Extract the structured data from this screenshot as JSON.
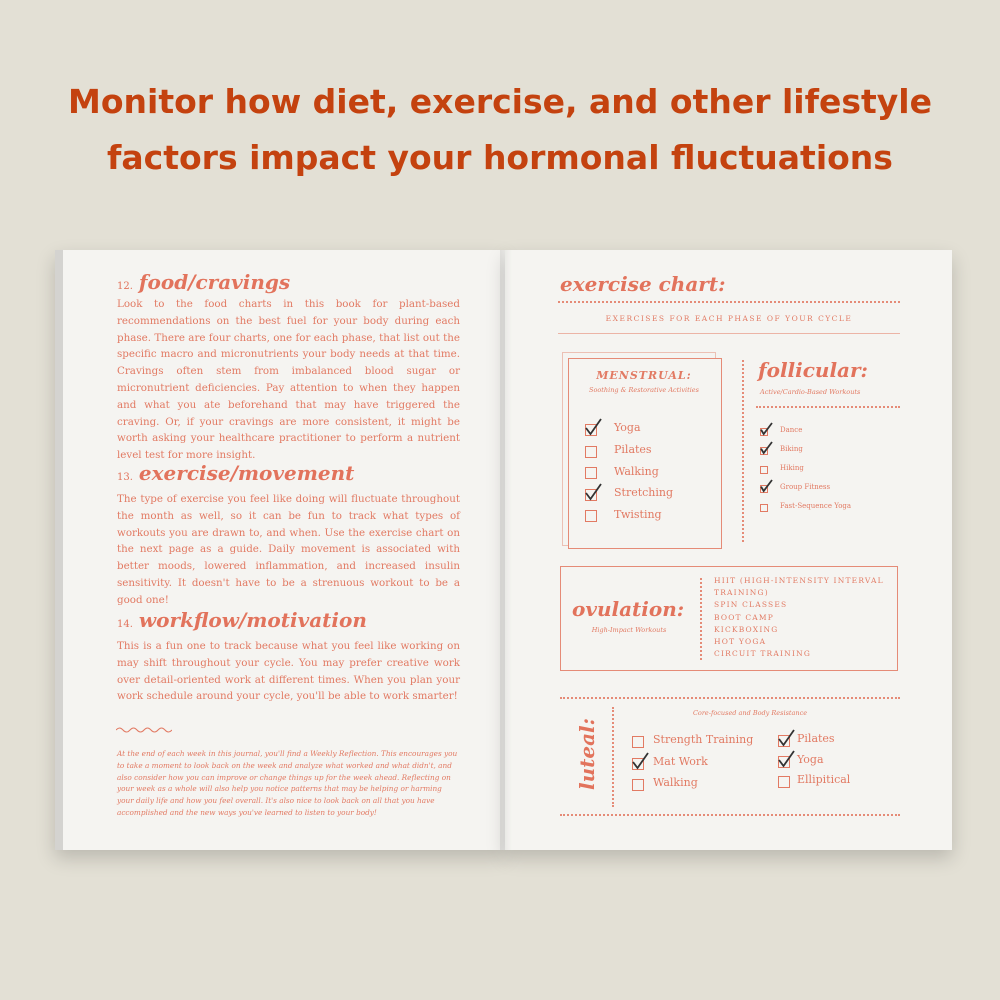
{
  "headline": {
    "lines": [
      "Monitor how diet, exercise, and other lifestyle",
      "factors impact your hormonal fluctuations"
    ]
  },
  "left_page": {
    "sections": [
      {
        "number": "12.",
        "title": "food/cravings",
        "body": "Look to the food charts in this book for plant-based recommendations on the best fuel for your body during each phase. There are four charts, one for each phase, that list out the specific macro and micronutrients your body needs at that time. Cravings often stem from imbalanced blood sugar or micronutrient deficiencies. Pay attention to when they happen and what you ate beforehand that may have triggered the craving. Or, if your cravings are more consistent, it might be worth asking your healthcare practitioner to perform a nutrient level test for more insight."
      },
      {
        "number": "13.",
        "title": "exercise/movement",
        "body": "The type of exercise you feel like doing will fluctuate throughout the month as well, so it can be fun to track what types of workouts you are drawn to, and when. Use the exercise chart on the next page as a guide. Daily movement is associated with better moods, lowered inflammation, and increased insulin sensitivity. It doesn't have to be a strenuous workout to be a good one!"
      },
      {
        "number": "14.",
        "title": "workflow/motivation",
        "body": "This is a fun one to track because what you feel like working on may shift throughout your cycle. You may prefer creative work over detail-oriented work at different times. When you plan your work schedule around your cycle, you'll be able to work smarter!"
      }
    ],
    "note": "At the end of each week in this journal, you'll find a Weekly Reflection. This encourages you to take a moment to look back on the week and analyze what worked and what didn't, and also consider how you can improve or change things up for the week ahead. Reflecting on your week as a whole will also help you notice patterns that may be helping or harming your daily life and how you feel overall. It's also nice to look back on all that you have accomplished and the new ways you've learned to listen to your body!"
  },
  "right_page": {
    "title": "exercise chart:",
    "subtitle": "EXERCISES FOR EACH PHASE OF YOUR CYCLE",
    "menstrual": {
      "title": "MENSTRUAL:",
      "subtitle": "Soothing & Restorative Activities",
      "items": [
        {
          "label": "Yoga",
          "checked": true
        },
        {
          "label": "Pilates",
          "checked": false
        },
        {
          "label": "Walking",
          "checked": false
        },
        {
          "label": "Stretching",
          "checked": true
        },
        {
          "label": "Twisting",
          "checked": false
        }
      ]
    },
    "follicular": {
      "title": "follicular:",
      "subtitle": "Active/Cardio-Based Workouts",
      "items": [
        {
          "label": "Dance",
          "checked": true
        },
        {
          "label": "Biking",
          "checked": true
        },
        {
          "label": "Hiking",
          "checked": false
        },
        {
          "label": "Group Fitness",
          "checked": true
        },
        {
          "label": "Fast-Sequence Yoga",
          "checked": false
        }
      ]
    },
    "ovulation": {
      "title": "ovulation:",
      "subtitle": "High-Impact Workouts",
      "items": [
        "HIIT (HIGH-INTENSITY INTERVAL TRAINING)",
        "SPIN CLASSES",
        "BOOT CAMP",
        "KICKBOXING",
        "HOT YOGA",
        "CIRCUIT TRAINING"
      ]
    },
    "luteal": {
      "title": "luteal:",
      "subtitle": "Core-focused and Body Resistance",
      "left_items": [
        {
          "label": "Strength Training",
          "checked": false
        },
        {
          "label": "Mat Work",
          "checked": true
        },
        {
          "label": "Walking",
          "checked": false
        }
      ],
      "right_items": [
        {
          "label": "Pilates",
          "checked": true
        },
        {
          "label": "Yoga",
          "checked": true
        },
        {
          "label": "Ellipitical",
          "checked": false
        }
      ]
    }
  }
}
